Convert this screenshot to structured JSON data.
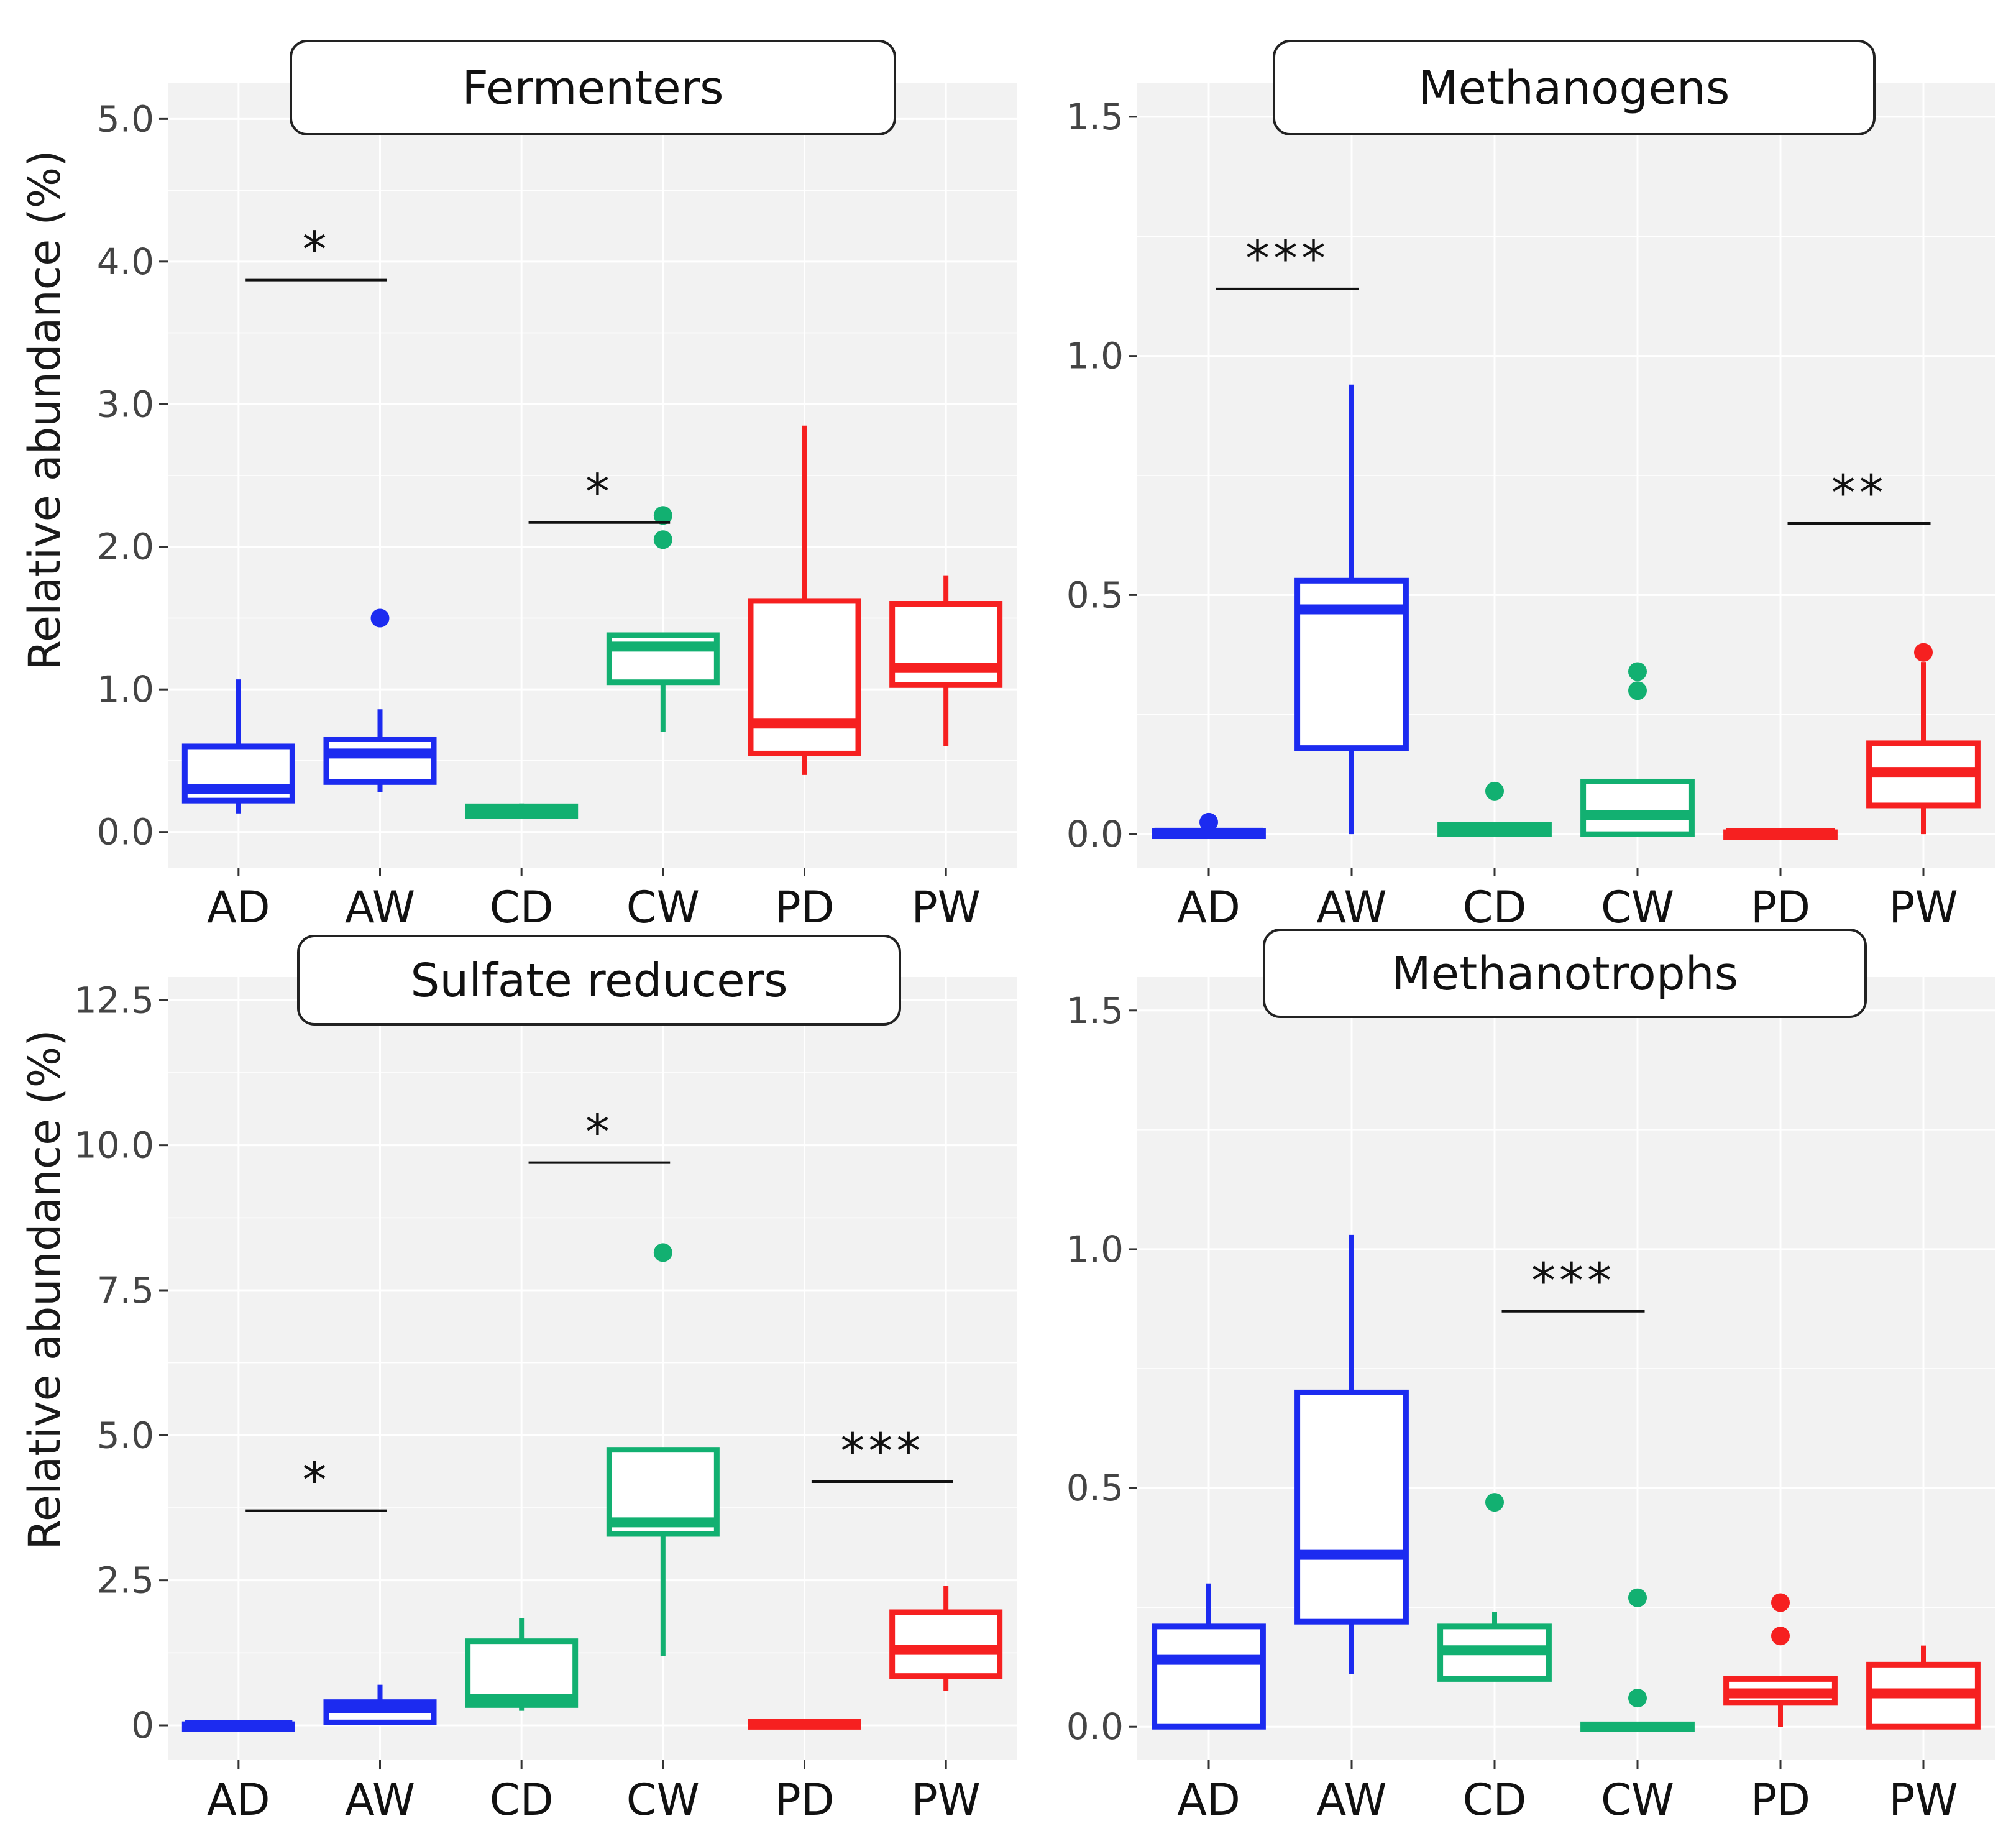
{
  "ylabel": "Relative abundance (%)",
  "categories": [
    "AD",
    "AW",
    "CD",
    "CW",
    "PD",
    "PW"
  ],
  "category_colors": [
    "#1c2bf0",
    "#1c2bf0",
    "#12b071",
    "#12b071",
    "#f62020",
    "#f62020"
  ],
  "panel_background": "#f2f2f2",
  "grid": true,
  "chart_data": [
    {
      "type": "box",
      "title": "Fermenters",
      "ylabel": "Relative abundance (%)",
      "ylim": [
        -0.25,
        5.25
      ],
      "yticks": [
        0.0,
        1.0,
        2.0,
        3.0,
        4.0,
        5.0
      ],
      "ytick_labels": [
        "0.0",
        "1.0",
        "2.0",
        "3.0",
        "4.0",
        "5.0"
      ],
      "boxes": [
        {
          "category": "AD",
          "whisker_low": 0.13,
          "q1": 0.22,
          "median": 0.3,
          "q3": 0.6,
          "whisker_high": 1.07,
          "outliers": []
        },
        {
          "category": "AW",
          "whisker_low": 0.28,
          "q1": 0.35,
          "median": 0.55,
          "q3": 0.65,
          "whisker_high": 0.86,
          "outliers": [
            1.5
          ]
        },
        {
          "category": "CD",
          "whisker_low": 0.1,
          "q1": 0.11,
          "median": 0.15,
          "q3": 0.18,
          "whisker_high": 0.2,
          "outliers": []
        },
        {
          "category": "CW",
          "whisker_low": 0.7,
          "q1": 1.05,
          "median": 1.3,
          "q3": 1.38,
          "whisker_high": 1.38,
          "outliers": [
            2.05,
            2.22
          ]
        },
        {
          "category": "PD",
          "whisker_low": 0.4,
          "q1": 0.55,
          "median": 0.76,
          "q3": 1.62,
          "whisker_high": 2.85,
          "outliers": []
        },
        {
          "category": "PW",
          "whisker_low": 0.6,
          "q1": 1.03,
          "median": 1.15,
          "q3": 1.6,
          "whisker_high": 1.8,
          "outliers": []
        }
      ],
      "significance": [
        {
          "groups": [
            "AD",
            "AW"
          ],
          "label": "*",
          "y": 3.87
        },
        {
          "groups": [
            "CD",
            "CW"
          ],
          "label": "*",
          "y": 2.17
        }
      ]
    },
    {
      "type": "box",
      "title": "Methanogens",
      "ylabel": "",
      "ylim": [
        -0.07,
        1.57
      ],
      "yticks": [
        0.0,
        0.5,
        1.0,
        1.5
      ],
      "ytick_labels": [
        "0.0",
        "0.5",
        "1.0",
        "1.5"
      ],
      "boxes": [
        {
          "category": "AD",
          "whisker_low": 0.0,
          "q1": 0.0,
          "median": 0.003,
          "q3": 0.006,
          "whisker_high": 0.006,
          "outliers": [
            0.025
          ]
        },
        {
          "category": "AW",
          "whisker_low": 0.0,
          "q1": 0.18,
          "median": 0.47,
          "q3": 0.53,
          "whisker_high": 0.94,
          "outliers": []
        },
        {
          "category": "CD",
          "whisker_low": 0.0,
          "q1": 0.0,
          "median": 0.005,
          "q3": 0.02,
          "whisker_high": 0.02,
          "outliers": [
            0.09
          ]
        },
        {
          "category": "CW",
          "whisker_low": 0.0,
          "q1": 0.0,
          "median": 0.04,
          "q3": 0.11,
          "whisker_high": 0.11,
          "outliers": [
            0.3,
            0.34
          ]
        },
        {
          "category": "PD",
          "whisker_low": 0.0,
          "q1": 0.0,
          "median": 0.002,
          "q3": 0.004,
          "whisker_high": 0.004,
          "outliers": []
        },
        {
          "category": "PW",
          "whisker_low": 0.0,
          "q1": 0.06,
          "median": 0.13,
          "q3": 0.19,
          "whisker_high": 0.36,
          "outliers": [
            0.38
          ]
        }
      ],
      "significance": [
        {
          "groups": [
            "AD",
            "AW"
          ],
          "label": "***",
          "y": 1.14
        },
        {
          "groups": [
            "PD",
            "PW"
          ],
          "label": "**",
          "y": 0.65
        }
      ]
    },
    {
      "type": "box",
      "title": "Sulfate reducers",
      "ylabel": "Relative abundance (%)",
      "ylim": [
        -0.6,
        12.9
      ],
      "yticks": [
        0,
        2.5,
        5.0,
        7.5,
        10.0,
        12.5
      ],
      "ytick_labels": [
        "0",
        "2.5",
        "5.0",
        "7.5",
        "10.0",
        "12.5"
      ],
      "boxes": [
        {
          "category": "AD",
          "whisker_low": 0.0,
          "q1": 0.0,
          "median": 0.01,
          "q3": 0.02,
          "whisker_high": 0.02,
          "outliers": []
        },
        {
          "category": "AW",
          "whisker_low": 0.05,
          "q1": 0.05,
          "median": 0.3,
          "q3": 0.4,
          "whisker_high": 0.7,
          "outliers": []
        },
        {
          "category": "CD",
          "whisker_low": 0.25,
          "q1": 0.35,
          "median": 0.45,
          "q3": 1.45,
          "whisker_high": 1.85,
          "outliers": []
        },
        {
          "category": "CW",
          "whisker_low": 1.2,
          "q1": 3.3,
          "median": 3.5,
          "q3": 4.75,
          "whisker_high": 4.75,
          "outliers": [
            8.15
          ]
        },
        {
          "category": "PD",
          "whisker_low": 0.0,
          "q1": 0.0,
          "median": 0.03,
          "q3": 0.06,
          "whisker_high": 0.06,
          "outliers": []
        },
        {
          "category": "PW",
          "whisker_low": 0.6,
          "q1": 0.85,
          "median": 1.3,
          "q3": 1.95,
          "whisker_high": 2.4,
          "outliers": []
        }
      ],
      "significance": [
        {
          "groups": [
            "AD",
            "AW"
          ],
          "label": "*",
          "y": 3.7
        },
        {
          "groups": [
            "CD",
            "CW"
          ],
          "label": "*",
          "y": 9.7
        },
        {
          "groups": [
            "PD",
            "PW"
          ],
          "label": "***",
          "y": 4.2
        }
      ]
    },
    {
      "type": "box",
      "title": "Methanotrophs",
      "ylabel": "",
      "ylim": [
        -0.07,
        1.57
      ],
      "yticks": [
        0.0,
        0.5,
        1.0,
        1.5
      ],
      "ytick_labels": [
        "0.0",
        "0.5",
        "1.0",
        "1.5"
      ],
      "boxes": [
        {
          "category": "AD",
          "whisker_low": 0.0,
          "q1": 0.0,
          "median": 0.14,
          "q3": 0.21,
          "whisker_high": 0.3,
          "outliers": []
        },
        {
          "category": "AW",
          "whisker_low": 0.11,
          "q1": 0.22,
          "median": 0.36,
          "q3": 0.7,
          "whisker_high": 1.03,
          "outliers": []
        },
        {
          "category": "CD",
          "whisker_low": 0.1,
          "q1": 0.1,
          "median": 0.16,
          "q3": 0.21,
          "whisker_high": 0.24,
          "outliers": [
            0.47
          ]
        },
        {
          "category": "CW",
          "whisker_low": 0.0,
          "q1": 0.0,
          "median": 0.0,
          "q3": 0.005,
          "whisker_high": 0.005,
          "outliers": [
            0.06,
            0.27
          ]
        },
        {
          "category": "PD",
          "whisker_low": 0.0,
          "q1": 0.05,
          "median": 0.07,
          "q3": 0.1,
          "whisker_high": 0.1,
          "outliers": [
            0.19,
            0.26
          ]
        },
        {
          "category": "PW",
          "whisker_low": 0.0,
          "q1": 0.0,
          "median": 0.07,
          "q3": 0.13,
          "whisker_high": 0.17,
          "outliers": []
        }
      ],
      "significance": [
        {
          "groups": [
            "CD",
            "CW"
          ],
          "label": "***",
          "y": 0.87
        }
      ]
    }
  ]
}
